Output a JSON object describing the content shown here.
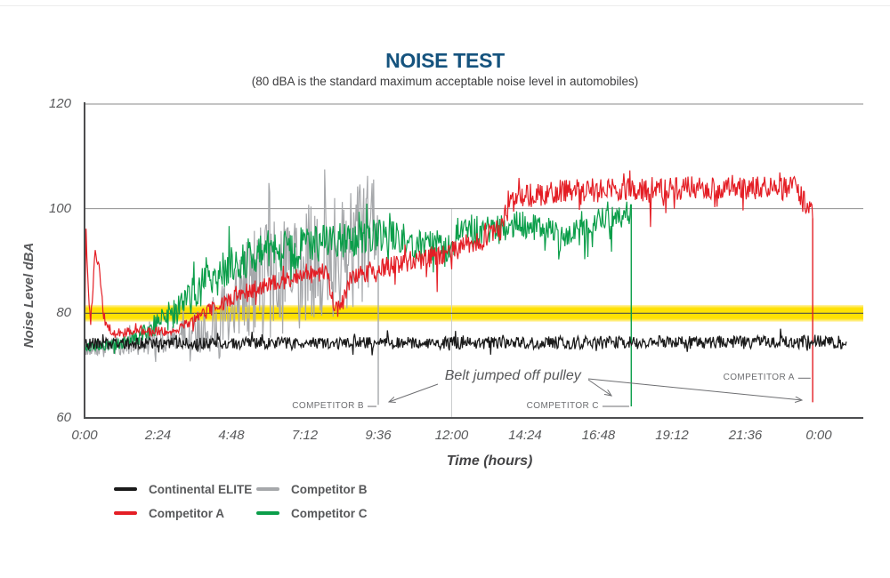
{
  "chart_data": {
    "type": "line",
    "title": "NOISE TEST",
    "subtitle": "(80 dBA is the standard maximum acceptable noise level in automobiles)",
    "xlabel": "Time (hours)",
    "ylabel": "Noise Level dBA",
    "ylim": [
      60,
      120
    ],
    "yticks": [
      60,
      80,
      100,
      120
    ],
    "xtick_hours": [
      0,
      2.4,
      4.8,
      7.2,
      9.6,
      12,
      14.4,
      16.8,
      19.2,
      21.6,
      24
    ],
    "xtick_labels": [
      "0:00",
      "2:24",
      "4:48",
      "7:12",
      "9:36",
      "12:00",
      "14:24",
      "16:48",
      "19:12",
      "21:36",
      "0:00"
    ],
    "grid_y": [
      100
    ],
    "grid_x_hours": [
      12
    ],
    "threshold_band": {
      "center_dba": 80,
      "halfwidth_dba": 1.6,
      "color_core": "#ffe103",
      "color_edge": "#fff3b2",
      "line_color": "#4f5147"
    },
    "series": [
      {
        "name": "Competitor B",
        "color": "#a6a8ab",
        "seed": 7,
        "width": 1.2,
        "end_hour": 9.6,
        "drop_to_dba": 62.5,
        "envelope": [
          [
            0,
            72.8
          ],
          [
            0.5,
            73.5
          ],
          [
            1.5,
            74.0
          ],
          [
            2.5,
            74.6
          ],
          [
            3.2,
            75.5
          ],
          [
            4,
            77
          ],
          [
            4.6,
            80
          ],
          [
            5.2,
            84
          ],
          [
            5.8,
            87
          ],
          [
            6.3,
            86
          ],
          [
            6.8,
            87
          ],
          [
            7.3,
            89
          ],
          [
            7.8,
            90
          ],
          [
            8.3,
            91
          ],
          [
            8.8,
            93
          ],
          [
            9.2,
            95
          ],
          [
            9.6,
            100
          ]
        ],
        "noise": [
          [
            0,
            1.3
          ],
          [
            1,
            1.8
          ],
          [
            2,
            2.2
          ],
          [
            3,
            2.8
          ],
          [
            4,
            4.5
          ],
          [
            4.6,
            6.5
          ],
          [
            5.2,
            9
          ],
          [
            5.8,
            11
          ],
          [
            6.5,
            12
          ],
          [
            7.5,
            12
          ],
          [
            8.5,
            13
          ],
          [
            9.3,
            12
          ],
          [
            9.6,
            7
          ]
        ],
        "clamp": [
          69.5,
          107.5
        ],
        "burst": 0.07,
        "dip": [
          0,
          0
        ],
        "dip_after": 0
      },
      {
        "name": "Competitor C",
        "color": "#0b9e4a",
        "seed": 11,
        "width": 1.2,
        "end_hour": 17.87,
        "drop_to_dba": 62.2,
        "envelope": [
          [
            0,
            73.5
          ],
          [
            1.2,
            74.2
          ],
          [
            1.8,
            75.5
          ],
          [
            2.4,
            78
          ],
          [
            3,
            80.5
          ],
          [
            3.6,
            84
          ],
          [
            4.2,
            87
          ],
          [
            5,
            89.5
          ],
          [
            5.6,
            91.5
          ],
          [
            6.5,
            92
          ],
          [
            7.5,
            93
          ],
          [
            8.5,
            94
          ],
          [
            9.5,
            95
          ],
          [
            10.3,
            94.5
          ],
          [
            10.8,
            92.5
          ],
          [
            11.3,
            93.5
          ],
          [
            11.8,
            92
          ],
          [
            12.3,
            96
          ],
          [
            13,
            96
          ],
          [
            14,
            97
          ],
          [
            15,
            96.5
          ],
          [
            15.6,
            94
          ],
          [
            16.2,
            97
          ],
          [
            17,
            98
          ],
          [
            17.87,
            99
          ]
        ],
        "noise": [
          [
            0,
            0.9
          ],
          [
            1.5,
            1.3
          ],
          [
            2.5,
            2.5
          ],
          [
            3.5,
            3.5
          ],
          [
            4.5,
            4.2
          ],
          [
            6,
            4.2
          ],
          [
            8,
            3.6
          ],
          [
            10,
            3.2
          ],
          [
            12,
            3.2
          ],
          [
            14,
            2.8
          ],
          [
            16,
            2.6
          ],
          [
            17.87,
            2.2
          ]
        ],
        "clamp": [
          70,
          101.5
        ],
        "burst": 0.06,
        "dip": [
          0.035,
          7
        ],
        "dip_after": 9.5
      },
      {
        "name": "Competitor A",
        "color": "#e41e25",
        "seed": 3,
        "width": 1.2,
        "end_hour": 23.8,
        "drop_to_dba": 63,
        "envelope": [
          [
            0,
            75
          ],
          [
            0.05,
            96
          ],
          [
            0.12,
            84
          ],
          [
            0.2,
            78
          ],
          [
            0.35,
            92
          ],
          [
            0.5,
            88
          ],
          [
            0.65,
            78
          ],
          [
            0.9,
            76.5
          ],
          [
            2.9,
            76.5
          ],
          [
            3.5,
            78.5
          ],
          [
            4.2,
            81
          ],
          [
            5,
            83.5
          ],
          [
            6,
            85.5
          ],
          [
            7,
            87
          ],
          [
            7.9,
            88
          ],
          [
            8.05,
            84
          ],
          [
            8.25,
            80.5
          ],
          [
            8.45,
            82
          ],
          [
            8.7,
            86.5
          ],
          [
            9,
            87.5
          ],
          [
            10,
            89
          ],
          [
            11,
            90.5
          ],
          [
            12,
            92
          ],
          [
            13,
            94
          ],
          [
            13.6,
            96
          ],
          [
            13.85,
            101.5
          ],
          [
            14.5,
            102.5
          ],
          [
            16,
            103.5
          ],
          [
            18,
            103.5
          ],
          [
            20,
            104
          ],
          [
            22,
            104.2
          ],
          [
            23.2,
            103.8
          ],
          [
            23.6,
            101
          ],
          [
            23.8,
            99.5
          ]
        ],
        "noise": [
          [
            0,
            1
          ],
          [
            3,
            0.9
          ],
          [
            5,
            1.6
          ],
          [
            8,
            1.8
          ],
          [
            12,
            2.2
          ],
          [
            14,
            2.4
          ],
          [
            23.8,
            2.3
          ]
        ],
        "clamp": [
          70,
          108
        ],
        "burst": 0.05,
        "dip": [
          0.02,
          6
        ],
        "dip_after": 10
      },
      {
        "name": "Continental ELITE",
        "color": "#1a1a1a",
        "seed": 5,
        "width": 1.25,
        "end_hour": 24.9,
        "drop_to_dba": null,
        "envelope": [
          [
            0,
            74.2
          ],
          [
            25,
            74.5
          ]
        ],
        "noise": [
          [
            0,
            1.1
          ],
          [
            25,
            1.3
          ]
        ],
        "clamp": [
          71,
          78
        ],
        "burst": 0.04,
        "dip": [
          0,
          0
        ],
        "dip_after": 0
      }
    ],
    "annotations": {
      "note": {
        "text": "Belt jumped off pulley",
        "hour": 14.0,
        "dba": 68.0
      },
      "events": [
        {
          "label": "COMPETITOR B",
          "hour": 9.6,
          "dba": 62.2
        },
        {
          "label": "COMPETITOR C",
          "hour": 17.86,
          "dba": 62.2
        },
        {
          "label": "COMPETITOR A",
          "hour": 23.79,
          "dba": 67.6
        }
      ]
    }
  },
  "legend": {
    "items": [
      {
        "label": "Continental ELITE",
        "color": "#1a1a1a"
      },
      {
        "label": "Competitor B",
        "color": "#a6a8ab"
      },
      {
        "label": "Competitor A",
        "color": "#e41e25"
      },
      {
        "label": "Competitor C",
        "color": "#0b9e4a"
      }
    ]
  }
}
